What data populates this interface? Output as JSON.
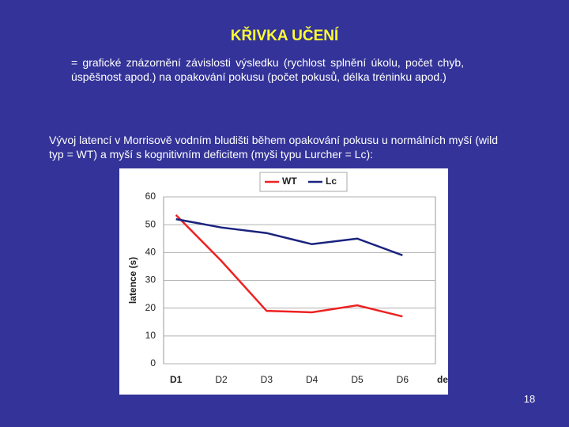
{
  "slide": {
    "title": "KŘIVKA UČENÍ",
    "definition": "= grafické znázornění závislosti výsledku (rychlost splnění úkolu, počet chyb, úspěšnost apod.) na opakování pokusu (počet pokusů, délka tréninku apod.)",
    "caption": "Vývoj latencí v Morrisově vodním bludišti během opakování pokusu u normálních myší (wild typ = WT) a myší s kognitivním deficitem (myši typu Lurcher = Lc):",
    "page_number": "18"
  },
  "chart_data": {
    "type": "line",
    "x_label": "den",
    "y_label": "latence (s)",
    "categories": [
      "D1",
      "D2",
      "D3",
      "D4",
      "D5",
      "D6"
    ],
    "series": [
      {
        "name": "WT",
        "color": "#ee2222",
        "values": [
          53.5,
          37,
          19,
          18.5,
          21,
          17
        ]
      },
      {
        "name": "Lc",
        "color": "#1a237e",
        "values": [
          52,
          49,
          47,
          43,
          45,
          39
        ]
      }
    ],
    "ylim": [
      0,
      60
    ],
    "yticks": [
      0,
      10,
      20,
      30,
      40,
      50,
      60
    ],
    "grid": true,
    "legend": "top"
  }
}
